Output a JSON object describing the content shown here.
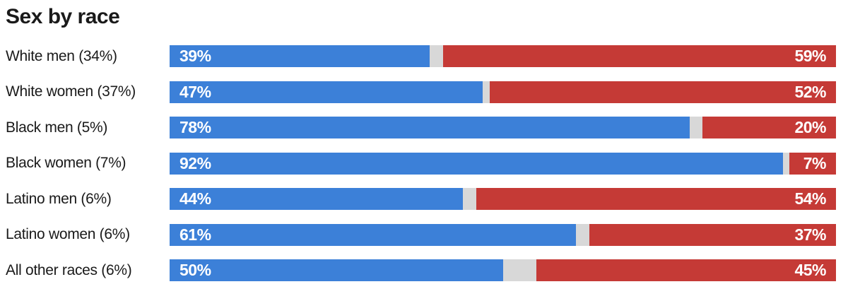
{
  "title": "Sex by race",
  "colors": {
    "dem_blue": "#3c80d8",
    "rep_red": "#c53a36",
    "gap_gray": "#d8d8d8",
    "text": "#1a1a1a",
    "background": "#ffffff"
  },
  "chart_data": {
    "type": "bar",
    "orientation": "horizontal",
    "stacked": true,
    "title": "Sex by race",
    "unit": "percent",
    "x_range": [
      0,
      100
    ],
    "grid": "off",
    "legend": "none",
    "categories": [
      "White men (34%)",
      "White women (37%)",
      "Black men (5%)",
      "Black women (7%)",
      "Latino men (6%)",
      "Latino women (6%)",
      "All other races (6%)"
    ],
    "series": [
      {
        "name": "blue-left-segment",
        "color": "#3c80d8",
        "values": [
          39,
          47,
          78,
          92,
          44,
          61,
          50
        ]
      },
      {
        "name": "gray-gap-segment",
        "color": "#d8d8d8",
        "values": [
          2,
          1,
          2,
          1,
          2,
          2,
          5
        ]
      },
      {
        "name": "red-right-segment",
        "color": "#c53a36",
        "values": [
          59,
          52,
          20,
          7,
          54,
          37,
          45
        ]
      }
    ],
    "rows": [
      {
        "label": "White men (34%)",
        "blue_pct": 39,
        "red_pct": 59,
        "blue_label": "39%",
        "red_label": "59%"
      },
      {
        "label": "White women (37%)",
        "blue_pct": 47,
        "red_pct": 52,
        "blue_label": "47%",
        "red_label": "52%"
      },
      {
        "label": "Black men (5%)",
        "blue_pct": 78,
        "red_pct": 20,
        "blue_label": "78%",
        "red_label": "20%"
      },
      {
        "label": "Black women (7%)",
        "blue_pct": 92,
        "red_pct": 7,
        "blue_label": "92%",
        "red_label": "7%"
      },
      {
        "label": "Latino men (6%)",
        "blue_pct": 44,
        "red_pct": 54,
        "blue_label": "44%",
        "red_label": "54%"
      },
      {
        "label": "Latino women (6%)",
        "blue_pct": 61,
        "red_pct": 37,
        "blue_label": "61%",
        "red_label": "37%"
      },
      {
        "label": "All other races (6%)",
        "blue_pct": 50,
        "red_pct": 45,
        "blue_label": "50%",
        "red_label": "45%"
      }
    ]
  }
}
